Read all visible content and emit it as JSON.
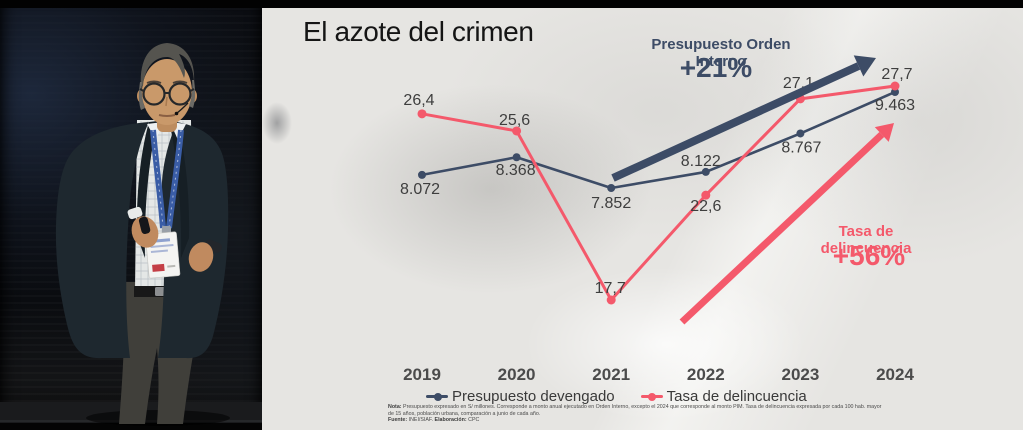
{
  "slide": {
    "title": "El azote del crimen",
    "footnote": {
      "nota_label": "Nota:",
      "nota_text": "Presupuesto expresado en S/ millones. Corresponde a monto anual ejecutado en Orden Interno, excepto el 2024 que corresponde al monto PIM. Tasa de delincuencia expresada por cada 100 hab. mayor de 15 años, población urbana, comparación a junio de cada año.",
      "fuente_label": "Fuente:",
      "fuente_text": "INEI/SIAF.",
      "elab_label": "Elaboración:",
      "elab_text": "CPC"
    }
  },
  "chart_data": {
    "type": "line",
    "title": "El azote del crimen",
    "categories": [
      "2019",
      "2020",
      "2021",
      "2022",
      "2023",
      "2024"
    ],
    "series": [
      {
        "name": "Presupuesto devengado",
        "color": "#3d4c66",
        "values": [
          8072,
          8368,
          7852,
          8122,
          8767,
          9463
        ],
        "labels": [
          "8.072",
          "8.368",
          "7.852",
          "8.122",
          "8.767",
          "9.463"
        ]
      },
      {
        "name": "Tasa de delincuencia",
        "color": "#f4596b",
        "values": [
          26.4,
          25.6,
          17.7,
          22.6,
          27.1,
          27.7
        ],
        "labels": [
          "26,4",
          "25,6",
          "17,7",
          "22,6",
          "27,1",
          "27,7"
        ]
      }
    ],
    "annotations": [
      {
        "label": "Presupuesto Orden Interno",
        "delta": "+21%",
        "color": "#3d4c66"
      },
      {
        "label": "Tasa de delincuencia",
        "delta": "+56%",
        "color": "#f4596b"
      }
    ],
    "legend_position": "bottom",
    "y_axis_visible": false,
    "grid": false,
    "label_text_color": "#3e3e3e",
    "axis_text_color": "#4b4b4b"
  }
}
